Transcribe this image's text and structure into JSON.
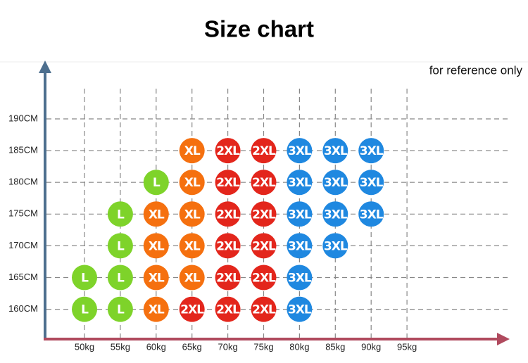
{
  "title": "Size chart",
  "note": "for reference only",
  "weights": [
    "50kg",
    "55kg",
    "60kg",
    "65kg",
    "70kg",
    "75kg",
    "80kg",
    "85kg",
    "90kg",
    "95kg"
  ],
  "colors": {
    "L": "#7ed32a",
    "XL": "#f5700f",
    "2XL": "#e3261c",
    "3XL": "#1f88e0"
  },
  "rows": [
    {
      "height": "190CM",
      "cells": [
        null,
        null,
        null,
        null,
        null,
        null,
        null,
        null,
        null,
        null
      ]
    },
    {
      "height": "185CM",
      "cells": [
        null,
        null,
        null,
        "XL",
        "2XL",
        "2XL",
        "3XL",
        "3XL",
        "3XL",
        null
      ]
    },
    {
      "height": "180CM",
      "cells": [
        null,
        null,
        "L",
        "XL",
        "2XL",
        "2XL",
        "3XL",
        "3XL",
        "3XL",
        null
      ]
    },
    {
      "height": "175CM",
      "cells": [
        null,
        "L",
        "XL",
        "XL",
        "2XL",
        "2XL",
        "3XL",
        "3XL",
        "3XL",
        null
      ]
    },
    {
      "height": "170CM",
      "cells": [
        null,
        "L",
        "XL",
        "XL",
        "2XL",
        "2XL",
        "3XL",
        "3XL",
        null,
        null
      ]
    },
    {
      "height": "165CM",
      "cells": [
        "L",
        "L",
        "XL",
        "XL",
        "2XL",
        "2XL",
        "3XL",
        null,
        null,
        null
      ]
    },
    {
      "height": "160CM",
      "cells": [
        "L",
        "L",
        "XL",
        "2XL",
        "2XL",
        "2XL",
        "3XL",
        null,
        null,
        null
      ]
    }
  ]
}
